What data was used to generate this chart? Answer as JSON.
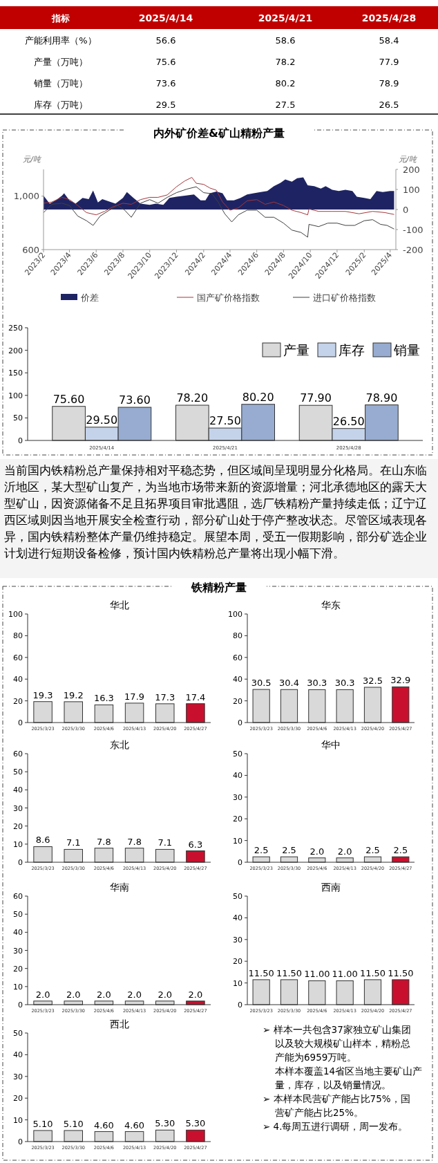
{
  "chart_data": [
    {
      "type": "heatmap",
      "data_labels": true,
      "ylabel": "指标",
      "categories": [
        "2025/4/14",
        "2025/4/21",
        "2025/4/28"
      ],
      "y_categories": [
        "产能利用率（%）",
        "产量（万吨）",
        "销量（万吨）",
        "库存（万吨）"
      ],
      "cells": [
        [
          56.6,
          58.6,
          58.4
        ],
        [
          75.6,
          78.2,
          77.9
        ],
        [
          73.6,
          80.2,
          78.9
        ],
        [
          29.5,
          27.5,
          26.5
        ]
      ]
    },
    {
      "type": "line",
      "title": "内外矿价差&矿山精粉产量",
      "ylabel": "元/吨",
      "y2label": "元/吨",
      "xlim": [
        "2023-02-01",
        "2025-04-14"
      ],
      "xticks": [
        {
          "value": "2023-02",
          "label": "2023/2"
        },
        {
          "value": "2023-04",
          "label": "2023/4"
        },
        {
          "value": "2023-06",
          "label": "2023/6"
        },
        {
          "value": "2023-08",
          "label": "2023/8"
        },
        {
          "value": "2023-10",
          "label": "2023/10"
        },
        {
          "value": "2023-12",
          "label": "2023/12"
        },
        {
          "value": "2024-02",
          "label": "2024/2"
        },
        {
          "value": "2024-04",
          "label": "2024/4"
        },
        {
          "value": "2024-06",
          "label": "2024/6"
        },
        {
          "value": "2024-08",
          "label": "2024/8"
        },
        {
          "value": "2024-10",
          "label": "2024/10"
        },
        {
          "value": "2024-12",
          "label": "2024/12"
        },
        {
          "value": "2025-02",
          "label": "2025/2"
        },
        {
          "value": "2025-04",
          "label": "2025/4"
        }
      ],
      "ylim": [
        600,
        1200
      ],
      "yticks": [
        600,
        {
          "value": 1000,
          "label": "1,000"
        }
      ],
      "y2lim": [
        -200,
        200
      ],
      "y2ticks": [
        200,
        100,
        0,
        -100,
        -200
      ],
      "legend": "bottom",
      "series": [
        {
          "name": "价差",
          "type": "area",
          "axis": "y2",
          "color": "#1e2463",
          "x": [
            "2023-02-01",
            "2023-02-15",
            "2023-03-01",
            "2023-03-15",
            "2023-03-20",
            "2023-04-01",
            "2023-04-15",
            "2023-05-01",
            "2023-05-15",
            "2023-05-25",
            "2023-06-05",
            "2023-06-15",
            "2023-07-01",
            "2023-07-15",
            "2023-08-01",
            "2023-08-10",
            "2023-08-25",
            "2023-09-10",
            "2023-10-01",
            "2023-10-15",
            "2023-11-01",
            "2023-11-15",
            "2023-12-01",
            "2023-12-20",
            "2024-01-10",
            "2024-01-25",
            "2024-02-05",
            "2024-02-15",
            "2024-03-01",
            "2024-03-15",
            "2024-03-25",
            "2024-04-10",
            "2024-04-25",
            "2024-05-10",
            "2024-05-25",
            "2024-06-10",
            "2024-06-25",
            "2024-07-10",
            "2024-07-25",
            "2024-08-05",
            "2024-08-20",
            "2024-09-01",
            "2024-09-15",
            "2024-09-25",
            "2024-10-10",
            "2024-10-25",
            "2024-11-05",
            "2024-11-20",
            "2024-12-05",
            "2024-12-20",
            "2025-01-05",
            "2025-01-15",
            "2025-02-01",
            "2025-02-15",
            "2025-03-01",
            "2025-03-15",
            "2025-04-01",
            "2025-04-10"
          ],
          "values": [
            69,
            29,
            46,
            69,
            81,
            46,
            29,
            58,
            52,
            95,
            35,
            52,
            40,
            29,
            58,
            87,
            58,
            29,
            23,
            29,
            23,
            58,
            64,
            69,
            75,
            46,
            46,
            81,
            90,
            81,
            46,
            46,
            58,
            75,
            81,
            87,
            92,
            116,
            133,
            150,
            139,
            156,
            160,
            121,
            116,
            104,
            116,
            98,
            92,
            98,
            92,
            64,
            58,
            52,
            92,
            87,
            92,
            92
          ]
        },
        {
          "name": "国产矿价格指数",
          "type": "line",
          "color": "#a3363b",
          "x": [
            "2023-02-01",
            "2023-02-20",
            "2023-03-15",
            "2023-04-01",
            "2023-04-20",
            "2023-05-10",
            "2023-06-01",
            "2023-06-20",
            "2023-07-10",
            "2023-08-01",
            "2023-08-20",
            "2023-09-10",
            "2023-10-01",
            "2023-10-20",
            "2023-11-10",
            "2023-12-01",
            "2023-12-20",
            "2024-01-05",
            "2024-01-15",
            "2024-02-01",
            "2024-02-15",
            "2024-03-01",
            "2024-03-15",
            "2024-04-01",
            "2024-04-20",
            "2024-05-10",
            "2024-06-01",
            "2024-06-20",
            "2024-07-10",
            "2024-08-01",
            "2024-08-20",
            "2024-09-10",
            "2024-09-25",
            "2024-09-28",
            "2024-10-20",
            "2024-11-20",
            "2024-12-20",
            "2025-01-20",
            "2025-02-20",
            "2025-03-20",
            "2025-04-10"
          ],
          "values": [
            947,
            956,
            991,
            974,
            930,
            877,
            860,
            886,
            921,
            947,
            939,
            974,
            991,
            991,
            1009,
            1070,
            1114,
            1140,
            1096,
            1088,
            1061,
            1044,
            956,
            895,
            912,
            965,
            974,
            939,
            956,
            930,
            895,
            877,
            860,
            904,
            886,
            886,
            886,
            868,
            886,
            877,
            863
          ]
        },
        {
          "name": "进口矿价格指数",
          "type": "line",
          "color": "#3f3f3f",
          "x": [
            "2023-02-01",
            "2023-02-20",
            "2023-03-15",
            "2023-04-01",
            "2023-04-20",
            "2023-05-10",
            "2023-05-25",
            "2023-06-10",
            "2023-07-01",
            "2023-07-20",
            "2023-08-05",
            "2023-08-20",
            "2023-09-10",
            "2023-10-01",
            "2023-10-20",
            "2023-11-10",
            "2023-12-01",
            "2023-12-25",
            "2024-01-15",
            "2024-02-01",
            "2024-02-20",
            "2024-03-05",
            "2024-03-20",
            "2024-04-05",
            "2024-04-20",
            "2024-05-10",
            "2024-06-01",
            "2024-06-20",
            "2024-07-10",
            "2024-08-01",
            "2024-08-20",
            "2024-09-10",
            "2024-09-25",
            "2024-09-28",
            "2024-10-20",
            "2024-11-10",
            "2024-12-01",
            "2024-12-20",
            "2025-01-10",
            "2025-02-01",
            "2025-02-20",
            "2025-03-10",
            "2025-03-25",
            "2025-04-10"
          ],
          "values": [
            877,
            939,
            947,
            930,
            851,
            816,
            781,
            851,
            895,
            930,
            895,
            842,
            947,
            974,
            947,
            991,
            1026,
            1053,
            1070,
            1026,
            1018,
            956,
            868,
            807,
            860,
            895,
            895,
            842,
            842,
            798,
            746,
            728,
            693,
            789,
            772,
            798,
            798,
            781,
            781,
            816,
            824,
            789,
            781,
            754
          ]
        }
      ]
    },
    {
      "type": "bar",
      "categories": [
        "2025/4/14",
        "2025/4/21",
        "2025/4/28"
      ],
      "ylim": [
        0,
        250
      ],
      "yticks": [
        0,
        50,
        100,
        150,
        200,
        250
      ],
      "legend": "top right",
      "series": [
        {
          "name": "产量",
          "color": "#d9d9d9",
          "values": [
            75.6,
            78.2,
            77.9
          ],
          "value_labels": [
            "75.60",
            "78.20",
            "77.90"
          ]
        },
        {
          "name": "库存",
          "color": "#c5d3ea",
          "values": [
            29.5,
            27.5,
            26.5
          ],
          "value_labels": [
            "29.50",
            "27.50",
            "26.50"
          ]
        },
        {
          "name": "销量",
          "color": "#97acd0",
          "values": [
            73.6,
            80.2,
            78.9
          ],
          "value_labels": [
            "73.60",
            "80.20",
            "78.90"
          ]
        }
      ]
    },
    {
      "type": "other",
      "annotations": [
        "当前国内铁精粉总产量保持相对平稳态势，但区域间呈现明显分化格局。在山东临沂地区，某大型矿山复产，为当地市场带来新的资源增量；河北承德地区的露天大型矿山，因资源储备不足且拓界项目审批遇阻，选厂铁精粉产量持续走低；辽宁辽西区域则因当地开展安全检查行动，部分矿山处于停产整改状态。尽管区域表现各异，国内铁精粉整体产量仍维持稳定。展望本周，受五一假期影响，部分矿选企业计划进行短期设备检修，预计国内铁精粉总产量将出现小幅下滑。"
      ]
    },
    {
      "type": "other",
      "title": "铁精粉产量"
    },
    {
      "type": "bar",
      "title": "华北",
      "categories": [
        "2025/3/23",
        "2025/3/30",
        "2025/4/6",
        "2025/4/13",
        "2025/4/20",
        "2025/4/27"
      ],
      "values": [
        19.3,
        19.2,
        16.3,
        17.9,
        17.3,
        17.4
      ],
      "colors": [
        "#d9d9d9",
        "#d9d9d9",
        "#d9d9d9",
        "#d9d9d9",
        "#d9d9d9",
        "#c8102e"
      ],
      "ylim": [
        0,
        100
      ],
      "yticks": [
        0,
        20,
        40,
        60,
        80,
        100
      ],
      "data_labels": true
    },
    {
      "type": "bar",
      "title": "华东",
      "categories": [
        "2025/3/23",
        "2025/3/30",
        "2025/4/6",
        "2025/4/13",
        "2025/4/20",
        "2025/4/27"
      ],
      "values": [
        30.5,
        30.4,
        30.3,
        30.3,
        32.5,
        32.9
      ],
      "colors": [
        "#d9d9d9",
        "#d9d9d9",
        "#d9d9d9",
        "#d9d9d9",
        "#d9d9d9",
        "#c8102e"
      ],
      "ylim": [
        0,
        100
      ],
      "yticks": [
        0,
        20,
        40,
        60,
        80,
        100
      ],
      "data_labels": true
    },
    {
      "type": "bar",
      "title": "东北",
      "categories": [
        "2025/3/23",
        "2025/3/30",
        "2025/4/6",
        "2025/4/13",
        "2025/4/20",
        "2025/4/27"
      ],
      "values": [
        8.6,
        7.1,
        7.8,
        7.8,
        7.1,
        6.3
      ],
      "colors": [
        "#d9d9d9",
        "#d9d9d9",
        "#d9d9d9",
        "#d9d9d9",
        "#d9d9d9",
        "#c8102e"
      ],
      "ylim": [
        0,
        60
      ],
      "yticks": [
        0,
        10,
        20,
        30,
        40,
        50,
        60
      ],
      "data_labels": true
    },
    {
      "type": "bar",
      "title": "华中",
      "categories": [
        "2025/3/23",
        "2025/3/30",
        "2025/4/6",
        "2025/4/13",
        "2025/4/20",
        "2025/4/27"
      ],
      "values": [
        2.5,
        2.5,
        2,
        2,
        2.5,
        2.5
      ],
      "value_labels": [
        "2.5",
        "2.5",
        "2.0",
        "2.0",
        "2.5",
        "2.5"
      ],
      "colors": [
        "#d9d9d9",
        "#d9d9d9",
        "#d9d9d9",
        "#d9d9d9",
        "#d9d9d9",
        "#c8102e"
      ],
      "ylim": [
        0,
        50
      ],
      "yticks": [
        0,
        10,
        20,
        30,
        40,
        50
      ]
    },
    {
      "type": "bar",
      "title": "华南",
      "categories": [
        "2025/3/23",
        "2025/3/30",
        "2025/4/6",
        "2025/4/13",
        "2025/4/20",
        "2025/4/27"
      ],
      "values": [
        2,
        2,
        2,
        2,
        2,
        2
      ],
      "value_labels": [
        "2.0",
        "2.0",
        "2.0",
        "2.0",
        "2.0",
        "2.0"
      ],
      "colors": [
        "#d9d9d9",
        "#d9d9d9",
        "#d9d9d9",
        "#d9d9d9",
        "#d9d9d9",
        "#c8102e"
      ],
      "ylim": [
        0,
        60
      ],
      "yticks": [
        0,
        10,
        20,
        30,
        40,
        50,
        60
      ]
    },
    {
      "type": "bar",
      "title": "西南",
      "categories": [
        "2025/3/23",
        "2025/3/30",
        "2025/4/6",
        "2025/4/13",
        "2025/4/20",
        "2025/4/27"
      ],
      "values": [
        11.5,
        11.5,
        11,
        11,
        11.5,
        11.5
      ],
      "value_labels": [
        "11.50",
        "11.50",
        "11.00",
        "11.00",
        "11.50",
        "11.50"
      ],
      "colors": [
        "#d9d9d9",
        "#d9d9d9",
        "#d9d9d9",
        "#d9d9d9",
        "#d9d9d9",
        "#c8102e"
      ],
      "ylim": [
        0,
        50
      ],
      "yticks": [
        0,
        10,
        20,
        30,
        40,
        50
      ]
    },
    {
      "type": "bar",
      "title": "西北",
      "categories": [
        "2025/3/23",
        "2025/3/30",
        "2025/4/6",
        "2025/4/13",
        "2025/4/20",
        "2025/4/27"
      ],
      "values": [
        5.1,
        5.1,
        4.6,
        4.6,
        5.3,
        5.3
      ],
      "value_labels": [
        "5.10",
        "5.10",
        "4.60",
        "4.60",
        "5.30",
        "5.30"
      ],
      "colors": [
        "#d9d9d9",
        "#d9d9d9",
        "#d9d9d9",
        "#d9d9d9",
        "#d9d9d9",
        "#c8102e"
      ],
      "ylim": [
        0,
        50
      ],
      "yticks": [
        0,
        10,
        20,
        30,
        40,
        50
      ]
    },
    {
      "type": "other",
      "annotations": [
        "➢ 样本一共包含37家独立矿山集团以及较大规模矿山样本，精粉总产能为6959万吨。",
        "本样本覆盖14省区当地主要矿山产量，库存，以及销量情况。",
        "➢ 本样本民营矿产能占比75%，国营矿产能占比25%。",
        "➢ 4.每周五进行调研，周一发布。"
      ]
    }
  ]
}
